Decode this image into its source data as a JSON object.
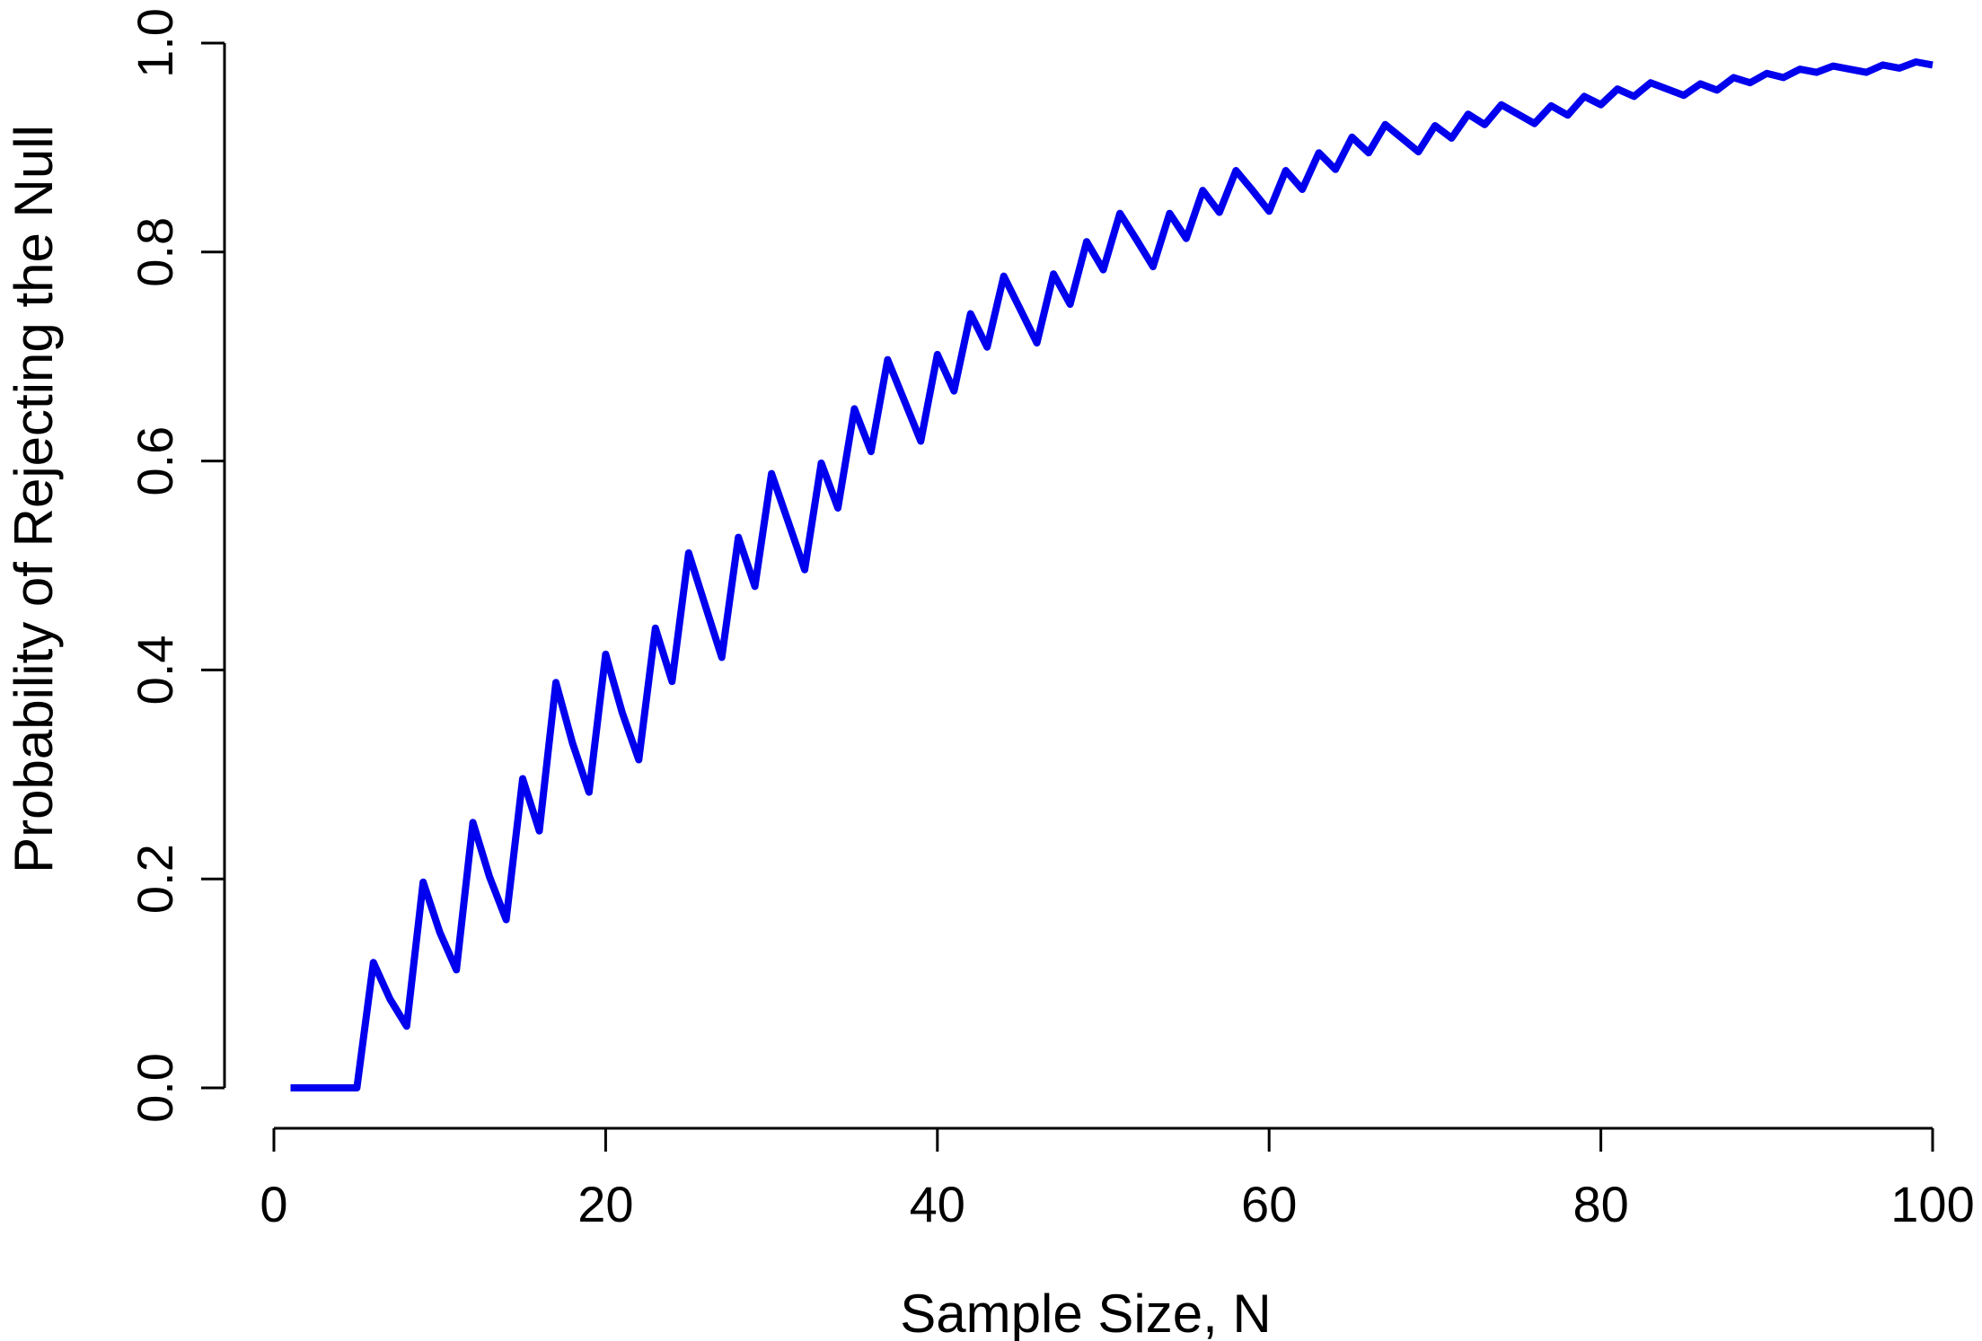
{
  "chart_data": {
    "type": "line",
    "title": "",
    "xlabel": "Sample Size, N",
    "ylabel": "Probability of Rejecting the Null",
    "xlim": [
      0,
      100
    ],
    "ylim": [
      0,
      1
    ],
    "xticks": [
      0,
      20,
      40,
      60,
      80,
      100
    ],
    "xtick_labels": [
      "0",
      "20",
      "40",
      "60",
      "80",
      "100"
    ],
    "yticks": [
      0,
      0.2,
      0.4,
      0.6,
      0.8,
      1.0
    ],
    "ytick_labels": [
      "0.0",
      "0.2",
      "0.4",
      "0.6",
      "0.8",
      "1.0"
    ],
    "grid": false,
    "legend": "none",
    "line_color": "#0000ee",
    "series": [
      {
        "x": [
          1,
          2,
          3,
          4,
          5,
          6,
          7,
          8,
          9,
          10,
          11,
          12,
          13,
          14,
          15,
          16,
          17,
          18,
          19,
          20,
          21,
          22,
          23,
          24,
          25,
          26,
          27,
          28,
          29,
          30,
          31,
          32,
          33,
          34,
          35,
          36,
          37,
          38,
          39,
          40,
          41,
          42,
          43,
          44,
          45,
          46,
          47,
          48,
          49,
          50,
          51,
          52,
          53,
          54,
          55,
          56,
          57,
          58,
          59,
          60,
          61,
          62,
          63,
          64,
          65,
          66,
          67,
          68,
          69,
          70,
          71,
          72,
          73,
          74,
          75,
          76,
          77,
          78,
          79,
          80,
          81,
          82,
          83,
          84,
          85,
          86,
          87,
          88,
          89,
          90,
          91,
          92,
          93,
          94,
          95,
          96,
          97,
          98,
          99,
          100
        ],
        "values": [
          0,
          0,
          0,
          0,
          0,
          0.12,
          0.085,
          0.059,
          0.197,
          0.149,
          0.113,
          0.254,
          0.202,
          0.161,
          0.296,
          0.246,
          0.388,
          0.33,
          0.283,
          0.415,
          0.359,
          0.314,
          0.44,
          0.389,
          0.512,
          0.462,
          0.412,
          0.527,
          0.48,
          0.588,
          0.542,
          0.496,
          0.598,
          0.555,
          0.65,
          0.609,
          0.697,
          0.658,
          0.619,
          0.702,
          0.667,
          0.741,
          0.709,
          0.777,
          0.745,
          0.713,
          0.779,
          0.75,
          0.81,
          0.783,
          0.837,
          0.812,
          0.786,
          0.837,
          0.813,
          0.859,
          0.838,
          0.878,
          0.859,
          0.839,
          0.878,
          0.86,
          0.895,
          0.879,
          0.91,
          0.895,
          0.922,
          0.909,
          0.896,
          0.921,
          0.909,
          0.932,
          0.922,
          0.941,
          0.932,
          0.923,
          0.94,
          0.931,
          0.949,
          0.941,
          0.956,
          0.949,
          0.962,
          0.956,
          0.95,
          0.961,
          0.955,
          0.967,
          0.962,
          0.971,
          0.967,
          0.975,
          0.972,
          0.978,
          0.975,
          0.972,
          0.979,
          0.976,
          0.982,
          0.979
        ]
      }
    ]
  }
}
